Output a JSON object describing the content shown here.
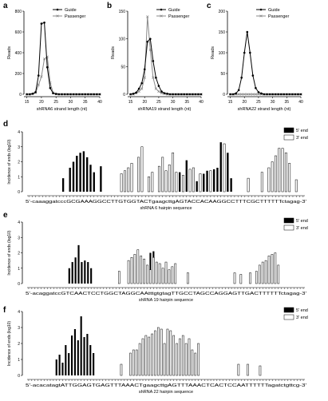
{
  "chart_data": [
    {
      "panel": "a",
      "type": "line",
      "xlabel": "shRNA6 strand length (nt)",
      "ylabel": "Reads",
      "xlim": [
        14,
        40
      ],
      "ylim": [
        0,
        800
      ],
      "xticks": [
        15,
        20,
        25,
        30,
        35,
        40
      ],
      "yticks": [
        0,
        200,
        400,
        600,
        800
      ],
      "legend": "top-right",
      "x": [
        15,
        16,
        17,
        18,
        19,
        20,
        21,
        22,
        23,
        24,
        25,
        26,
        27,
        28,
        29,
        30,
        31,
        32,
        33,
        34,
        35,
        36,
        37,
        38,
        39,
        40
      ],
      "series": [
        {
          "name": "Guide",
          "marker": "filled-circle",
          "values": [
            0,
            0,
            5,
            20,
            180,
            680,
            690,
            260,
            60,
            10,
            3,
            0,
            0,
            0,
            0,
            0,
            0,
            0,
            0,
            0,
            0,
            0,
            0,
            0,
            0,
            0
          ]
        },
        {
          "name": "Passenger",
          "marker": "cross",
          "values": [
            0,
            0,
            5,
            15,
            90,
            170,
            340,
            360,
            110,
            15,
            3,
            0,
            0,
            0,
            0,
            0,
            0,
            0,
            0,
            0,
            0,
            0,
            0,
            0,
            0,
            0
          ]
        }
      ]
    },
    {
      "panel": "b",
      "type": "line",
      "xlabel": "shRNA19 strand length (nt)",
      "ylabel": "Reads",
      "xlim": [
        14,
        40
      ],
      "ylim": [
        0,
        150
      ],
      "xticks": [
        15,
        20,
        25,
        30,
        35,
        40
      ],
      "yticks": [
        0,
        50,
        100,
        150
      ],
      "legend": "top-right",
      "x": [
        15,
        16,
        17,
        18,
        19,
        20,
        21,
        22,
        23,
        24,
        25,
        26,
        27,
        28,
        29,
        30,
        31,
        32,
        33,
        34,
        35,
        36,
        37,
        38,
        39,
        40
      ],
      "series": [
        {
          "name": "Guide",
          "marker": "filled-circle",
          "values": [
            0,
            1,
            3,
            10,
            20,
            45,
            95,
            100,
            60,
            30,
            15,
            5,
            2,
            1,
            0,
            0,
            0,
            0,
            0,
            0,
            0,
            0,
            0,
            0,
            0,
            0
          ]
        },
        {
          "name": "Passenger",
          "marker": "cross",
          "values": [
            0,
            0,
            2,
            5,
            10,
            30,
            140,
            80,
            30,
            10,
            5,
            2,
            1,
            0,
            0,
            0,
            0,
            0,
            0,
            0,
            0,
            0,
            0,
            0,
            0,
            0
          ]
        }
      ]
    },
    {
      "panel": "c",
      "type": "line",
      "xlabel": "shRNA22 strand length (nt)",
      "ylabel": "Reads",
      "xlim": [
        14,
        40
      ],
      "ylim": [
        0,
        200
      ],
      "xticks": [
        15,
        20,
        25,
        30,
        35,
        40
      ],
      "yticks": [
        0,
        50,
        100,
        150,
        200
      ],
      "legend": "top-right",
      "x": [
        15,
        16,
        17,
        18,
        19,
        20,
        21,
        22,
        23,
        24,
        25,
        26,
        27,
        28,
        29,
        30,
        31,
        32,
        33,
        34,
        35,
        36,
        37,
        38,
        39,
        40
      ],
      "series": [
        {
          "name": "Guide",
          "marker": "filled-circle",
          "values": [
            0,
            0,
            2,
            10,
            40,
            100,
            150,
            100,
            45,
            15,
            5,
            2,
            0,
            0,
            0,
            0,
            0,
            0,
            0,
            0,
            0,
            0,
            0,
            0,
            0,
            0
          ]
        },
        {
          "name": "Passenger",
          "marker": "cross",
          "values": [
            0,
            0,
            0,
            0,
            0,
            0,
            0,
            0,
            0,
            0,
            0,
            0,
            0,
            0,
            0,
            0,
            0,
            0,
            0,
            0,
            0,
            0,
            0,
            0,
            0,
            0
          ]
        }
      ]
    },
    {
      "panel": "d",
      "type": "bar",
      "ylabel": "Incidence of ends (log10)",
      "xlabel": "shRNA 6 hairpin sequence",
      "ylim": [
        0,
        4
      ],
      "yticks": [
        0,
        1,
        2,
        3,
        4
      ],
      "legend": "top-right",
      "sequence": "5'-caaaggatcccGCGAAAGGCCTTGTGGTACTgaagcttgAGTACCACAAGGCCTTTCGCTTTTTTctagag-3'",
      "series": [
        {
          "name": "5' end",
          "color": "#000000",
          "values": [
            0,
            0,
            0,
            0,
            0,
            0,
            0,
            0,
            0,
            0,
            0.9,
            0,
            1.6,
            2.0,
            2.4,
            2.6,
            2.7,
            2.3,
            1.8,
            1.3,
            0,
            1.7,
            0,
            0,
            0,
            0,
            0,
            0,
            0,
            0,
            0,
            0,
            0,
            0,
            0,
            0,
            0,
            0,
            0,
            0,
            0,
            0,
            0,
            0,
            1.3,
            0,
            2.1,
            0,
            0,
            0.7,
            0,
            1.2,
            1.4,
            0,
            1.5,
            1.6,
            3.3,
            0,
            2.6,
            0.9,
            0,
            0,
            0,
            0,
            0,
            0,
            0,
            0,
            0,
            0,
            0,
            0,
            0,
            0,
            0,
            0,
            0,
            0,
            0,
            0,
            0
          ]
        },
        {
          "name": "3' end",
          "color": "#ffffff",
          "values": [
            0,
            0,
            0,
            0,
            0,
            0,
            0,
            0,
            0,
            0,
            0,
            0,
            0,
            0,
            0,
            0,
            0,
            0,
            0,
            0,
            0,
            0,
            0,
            0,
            0,
            0,
            0,
            1.2,
            1.4,
            1.6,
            1.9,
            0,
            2.3,
            3.0,
            0,
            1.0,
            1.3,
            0,
            1.7,
            2.3,
            1.4,
            1.8,
            2.6,
            1.3,
            0,
            1.1,
            0,
            1.5,
            1.6,
            0,
            1.2,
            0,
            0,
            1.4,
            0,
            0,
            0,
            3.2,
            0,
            0,
            0,
            0,
            0,
            0,
            0.9,
            0,
            0,
            0,
            1.3,
            0,
            1.6,
            2.0,
            2.4,
            2.9,
            2.9,
            2.6,
            1.9,
            0,
            0.8,
            0,
            0
          ]
        }
      ]
    },
    {
      "panel": "e",
      "type": "bar",
      "ylabel": "Incidence of ends (log10)",
      "xlabel": "shRNA 19 hairpin sequence",
      "ylim": [
        0,
        4
      ],
      "yticks": [
        0,
        1,
        2,
        3,
        4
      ],
      "legend": "top-right",
      "sequence": "5'-acaggatccGTCAACTCCTGGCTAGGCAAtttgtgtagTTGCCTAGCCAGGAGTTGACTTTTTTctagag-3'",
      "series": [
        {
          "name": "5' end",
          "color": "#000000",
          "values": [
            0,
            0,
            0,
            0,
            0,
            0,
            0,
            0,
            0,
            0,
            0,
            0,
            0,
            1.0,
            1.4,
            1.7,
            2.5,
            1.4,
            1.5,
            1.4,
            1.0,
            0,
            0,
            0,
            0,
            0,
            0,
            0,
            0,
            0,
            0,
            0,
            1.0,
            0,
            1.2,
            0,
            0,
            1.5,
            1.2,
            2.0,
            2.1,
            0,
            1.0,
            0,
            1.3,
            0,
            0,
            0,
            0,
            0,
            0,
            0,
            0,
            0,
            0,
            0,
            0,
            0,
            0,
            0,
            0,
            0,
            0,
            0,
            0,
            0,
            0,
            0,
            0,
            0,
            0,
            0,
            0,
            0,
            0,
            0,
            0,
            0,
            0,
            0,
            0,
            0,
            0,
            0,
            0,
            0,
            0,
            0,
            0
          ]
        },
        {
          "name": "3' end",
          "color": "#ffffff",
          "values": [
            0,
            0,
            0,
            0,
            0,
            0,
            0,
            0,
            0,
            0,
            0,
            0,
            0,
            0,
            0,
            0,
            0,
            0,
            0,
            0,
            0,
            0,
            0,
            0,
            0,
            0,
            0,
            0,
            0,
            0.8,
            0,
            0,
            1.5,
            1.7,
            1.9,
            2.2,
            1.8,
            1.6,
            1.2,
            0.9,
            1.7,
            1.4,
            1.3,
            1.0,
            1.4,
            0.9,
            1.1,
            1.3,
            0,
            0,
            0,
            0.7,
            0,
            0,
            0,
            0,
            0,
            0,
            0,
            0,
            0,
            0,
            0,
            0,
            0,
            0,
            0.7,
            0,
            0.6,
            0,
            0,
            0.7,
            0,
            0.8,
            1.2,
            1.4,
            1.5,
            1.8,
            1.9,
            2.0,
            1.2,
            0,
            0,
            0,
            0
          ]
        }
      ]
    },
    {
      "panel": "f",
      "type": "bar",
      "ylabel": "Incidence of ends (log10)",
      "xlabel": "shRNA 22 hairpin sequence",
      "ylim": [
        0,
        4
      ],
      "yticks": [
        0,
        1,
        2,
        3,
        4
      ],
      "legend": "top-right",
      "sequence": "5'-acacatagtATTGGAGTGAGTTTAAACTgaagcttgAGTTTAAACTCACTCCAATTTTTTagatctgttcg-3'",
      "series": [
        {
          "name": "5' end",
          "color": "#000000",
          "values": [
            0,
            0,
            0,
            0,
            0,
            0,
            0,
            0,
            0,
            1.0,
            1.3,
            0.8,
            1.9,
            1.4,
            2.5,
            2.9,
            2.2,
            3.7,
            2.4,
            2.6,
            1.9,
            1.4,
            0,
            0,
            0,
            0,
            0,
            0,
            0,
            0,
            0,
            0,
            0,
            0,
            0,
            0,
            0,
            0,
            0,
            0,
            0,
            0,
            0,
            0,
            0,
            0,
            0.6,
            0,
            0,
            0,
            0,
            0,
            0,
            0,
            0,
            0,
            0,
            0,
            0,
            0,
            0,
            0,
            0,
            0,
            0,
            0,
            0,
            0,
            0,
            0,
            0,
            0,
            0,
            0,
            0,
            0,
            0,
            0,
            0,
            0,
            0,
            0,
            0,
            0,
            0,
            0,
            0,
            0,
            0,
            0
          ]
        },
        {
          "name": "3' end",
          "color": "#ffffff",
          "values": [
            0,
            0,
            0,
            0,
            0,
            0,
            0,
            0,
            0,
            0,
            0,
            0,
            0,
            0,
            0,
            0,
            0,
            0,
            0,
            0,
            0,
            0,
            0,
            0,
            0,
            0,
            0,
            0,
            0,
            0,
            0.7,
            0,
            0,
            1.4,
            1.6,
            1.6,
            2.0,
            2.3,
            2.5,
            2.4,
            2.6,
            2.8,
            3.0,
            2.9,
            2.0,
            2.9,
            2.8,
            2.5,
            2.0,
            2.3,
            2.5,
            2.0,
            2.3,
            1.6,
            1.4,
            2.0,
            0,
            0,
            0,
            0,
            0,
            0,
            0,
            0,
            0,
            0,
            0,
            0,
            0.7,
            0,
            0,
            0.7,
            0,
            0,
            0,
            0.6,
            0,
            0,
            0,
            0,
            0,
            0,
            0,
            0,
            0,
            0,
            0,
            0,
            0
          ]
        }
      ]
    }
  ]
}
